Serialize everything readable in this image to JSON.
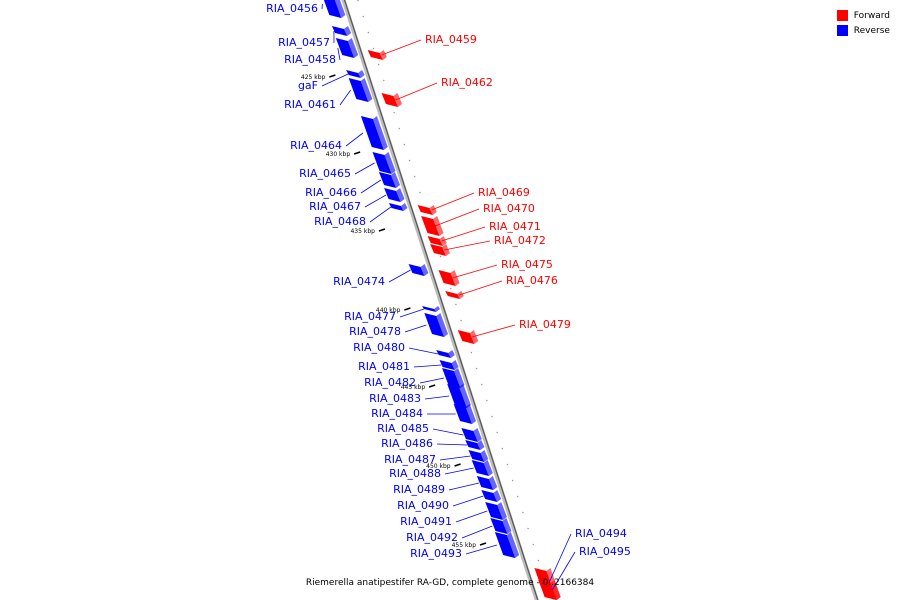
{
  "colors": {
    "forward": "#ff0000",
    "reverse": "#0000ff",
    "backbone": "#999999"
  },
  "legend": {
    "forward": "Forward",
    "reverse": "Reverse"
  },
  "caption": "Riemerella anatipestifer RA-GD, complete genome - 0..2166384",
  "kbp_ticks": [
    "425 kbp",
    "430 kbp",
    "435 kbp",
    "440 kbp",
    "445 kbp",
    "450 kbp",
    "455 kbp"
  ],
  "genes_reverse": [
    "RIA_0456",
    "RIA_0457",
    "RIA_0458",
    "gaF",
    "RIA_0461",
    "RIA_0464",
    "RIA_0465",
    "RIA_0466",
    "RIA_0467",
    "RIA_0468",
    "RIA_0474",
    "RIA_0477",
    "RIA_0478",
    "RIA_0480",
    "RIA_0481",
    "RIA_0482",
    "RIA_0483",
    "RIA_0484",
    "RIA_0485",
    "RIA_0486",
    "RIA_0487",
    "RIA_0488",
    "RIA_0489",
    "RIA_0490",
    "RIA_0491",
    "RIA_0492",
    "RIA_0493"
  ],
  "genes_forward": [
    "RIA_0459",
    "RIA_0462",
    "RIA_0469",
    "RIA_0470",
    "RIA_0471",
    "RIA_0472",
    "RIA_0475",
    "RIA_0476",
    "RIA_0479",
    "RIA_0494",
    "RIA_0495"
  ]
}
